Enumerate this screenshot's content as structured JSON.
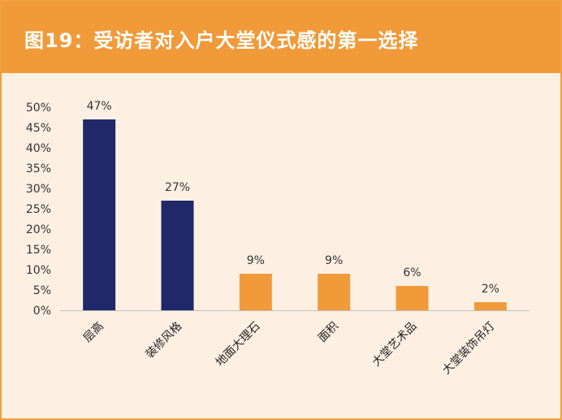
{
  "header": {
    "title": "图19：受访者对入户大堂仪式感的第一选择"
  },
  "colors": {
    "header_bg": "#f19a3a",
    "panel_bg": "#fdf0e3",
    "bar_dark": "#1f2868",
    "bar_orange": "#f19a3a"
  },
  "chart_data": {
    "type": "bar",
    "title": "图19：受访者对入户大堂仪式感的第一选择",
    "xlabel": "",
    "ylabel": "",
    "ylim": [
      0,
      50
    ],
    "yticks": [
      "0%",
      "5%",
      "10%",
      "15%",
      "20%",
      "25%",
      "30%",
      "35%",
      "40%",
      "45%",
      "50%"
    ],
    "categories": [
      "层高",
      "装修风格",
      "地面大理石",
      "面积",
      "大堂艺术品",
      "大堂装饰吊灯"
    ],
    "values": [
      47,
      27,
      9,
      9,
      6,
      2
    ],
    "data_labels": [
      "47%",
      "27%",
      "9%",
      "9%",
      "6%",
      "2%"
    ],
    "bar_colors": [
      "#1f2868",
      "#1f2868",
      "#f19a3a",
      "#f19a3a",
      "#f19a3a",
      "#f19a3a"
    ],
    "grid": false,
    "legend": "none"
  }
}
